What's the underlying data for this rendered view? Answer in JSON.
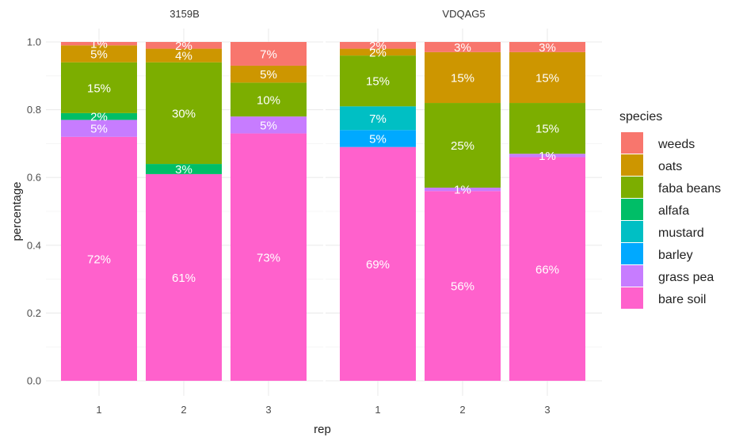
{
  "chart_data": {
    "type": "bar",
    "stacked": true,
    "xlabel": "rep",
    "ylabel": "percentage",
    "ylim": [
      0,
      1
    ],
    "yticks": [
      "0.0",
      "0.2",
      "0.4",
      "0.6",
      "0.8",
      "1.0"
    ],
    "grid": true,
    "legend": {
      "title": "species",
      "placement": "right",
      "order": [
        "weeds",
        "oats",
        "faba beans",
        "alfafa",
        "mustard",
        "barley",
        "grass pea",
        "bare soil"
      ]
    },
    "colors": {
      "weeds": "#F8766D",
      "oats": "#CD9600",
      "faba beans": "#7CAE00",
      "alfafa": "#00BE67",
      "mustard": "#00BFC4",
      "barley": "#00A9FF",
      "grass pea": "#C77CFF",
      "bare soil": "#FF61CC"
    },
    "stack_order": [
      "bare soil",
      "grass pea",
      "barley",
      "mustard",
      "alfafa",
      "faba beans",
      "oats",
      "weeds"
    ],
    "panels": [
      {
        "title": "3159B",
        "bars": [
          {
            "rep": "1",
            "segments": [
              {
                "species": "bare soil",
                "value": 0.72,
                "label": "72%"
              },
              {
                "species": "grass pea",
                "value": 0.05,
                "label": "5%"
              },
              {
                "species": "alfafa",
                "value": 0.02,
                "label": "2%"
              },
              {
                "species": "faba beans",
                "value": 0.15,
                "label": "15%"
              },
              {
                "species": "oats",
                "value": 0.05,
                "label": "5%"
              },
              {
                "species": "weeds",
                "value": 0.01,
                "label": "1%"
              }
            ]
          },
          {
            "rep": "2",
            "segments": [
              {
                "species": "bare soil",
                "value": 0.61,
                "label": "61%"
              },
              {
                "species": "alfafa",
                "value": 0.03,
                "label": "3%"
              },
              {
                "species": "faba beans",
                "value": 0.3,
                "label": "30%"
              },
              {
                "species": "oats",
                "value": 0.04,
                "label": "4%"
              },
              {
                "species": "weeds",
                "value": 0.02,
                "label": "2%"
              }
            ]
          },
          {
            "rep": "3",
            "segments": [
              {
                "species": "bare soil",
                "value": 0.73,
                "label": "73%"
              },
              {
                "species": "grass pea",
                "value": 0.05,
                "label": "5%"
              },
              {
                "species": "faba beans",
                "value": 0.1,
                "label": "10%"
              },
              {
                "species": "oats",
                "value": 0.05,
                "label": "5%"
              },
              {
                "species": "weeds",
                "value": 0.07,
                "label": "7%"
              }
            ]
          }
        ]
      },
      {
        "title": "VDQAG5",
        "bars": [
          {
            "rep": "1",
            "segments": [
              {
                "species": "bare soil",
                "value": 0.69,
                "label": "69%"
              },
              {
                "species": "barley",
                "value": 0.05,
                "label": "5%"
              },
              {
                "species": "mustard",
                "value": 0.07,
                "label": "7%"
              },
              {
                "species": "faba beans",
                "value": 0.15,
                "label": "15%"
              },
              {
                "species": "oats",
                "value": 0.02,
                "label": "2%"
              },
              {
                "species": "weeds",
                "value": 0.02,
                "label": "2%"
              }
            ]
          },
          {
            "rep": "2",
            "segments": [
              {
                "species": "bare soil",
                "value": 0.56,
                "label": "56%"
              },
              {
                "species": "grass pea",
                "value": 0.01,
                "label": "1%"
              },
              {
                "species": "faba beans",
                "value": 0.25,
                "label": "25%"
              },
              {
                "species": "oats",
                "value": 0.15,
                "label": "15%"
              },
              {
                "species": "weeds",
                "value": 0.03,
                "label": "3%"
              }
            ]
          },
          {
            "rep": "3",
            "segments": [
              {
                "species": "bare soil",
                "value": 0.66,
                "label": "66%"
              },
              {
                "species": "grass pea",
                "value": 0.01,
                "label": "1%"
              },
              {
                "species": "faba beans",
                "value": 0.15,
                "label": "15%"
              },
              {
                "species": "oats",
                "value": 0.15,
                "label": "15%"
              },
              {
                "species": "weeds",
                "value": 0.03,
                "label": "3%"
              }
            ]
          }
        ]
      }
    ]
  }
}
